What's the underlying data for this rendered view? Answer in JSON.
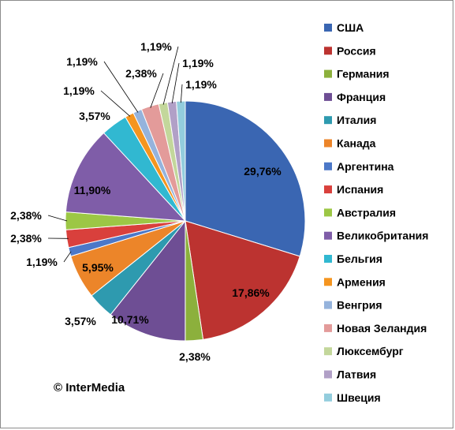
{
  "chart_data": {
    "type": "pie",
    "series": [
      {
        "name": "США",
        "value": 29.76,
        "label": "29,76%",
        "color": "#3A66B2"
      },
      {
        "name": "Россия",
        "value": 17.86,
        "label": "17,86%",
        "color": "#BC3330"
      },
      {
        "name": "Германия",
        "value": 2.38,
        "label": "2,38%",
        "color": "#8CB03C"
      },
      {
        "name": "Франция",
        "value": 10.71,
        "label": "10,71%",
        "color": "#6E4E94"
      },
      {
        "name": "Италия",
        "value": 3.57,
        "label": "3,57%",
        "color": "#2E9AAF"
      },
      {
        "name": "Канада",
        "value": 5.95,
        "label": "5,95%",
        "color": "#EC8529"
      },
      {
        "name": "Аргентина",
        "value": 1.19,
        "label": "1,19%",
        "color": "#4C78C8"
      },
      {
        "name": "Испания",
        "value": 2.38,
        "label": "2,38%",
        "color": "#D9403C"
      },
      {
        "name": "Австралия",
        "value": 2.38,
        "label": "2,38%",
        "color": "#9CC745"
      },
      {
        "name": "Великобритания",
        "value": 11.9,
        "label": "11,90%",
        "color": "#7F5DA8"
      },
      {
        "name": "Бельгия",
        "value": 3.57,
        "label": "3,57%",
        "color": "#31B8D1"
      },
      {
        "name": "Армения",
        "value": 1.19,
        "label": "1,19%",
        "color": "#F5951F"
      },
      {
        "name": "Венгрия",
        "value": 1.19,
        "label": "1,19%",
        "color": "#95B3DC"
      },
      {
        "name": "Новая Зеландия",
        "value": 2.38,
        "label": "2,38%",
        "color": "#E39B9A"
      },
      {
        "name": "Люксембург",
        "value": 1.19,
        "label": "1,19%",
        "color": "#C3D79B"
      },
      {
        "name": "Латвия",
        "value": 1.19,
        "label": "1,19%",
        "color": "#B1A0C7"
      },
      {
        "name": "Швеция",
        "value": 1.19,
        "label": "1,19%",
        "color": "#93CDDD"
      }
    ],
    "legend_position": "right",
    "start_angle": "12 o'clock, clockwise"
  },
  "copyright": "© InterMedia"
}
